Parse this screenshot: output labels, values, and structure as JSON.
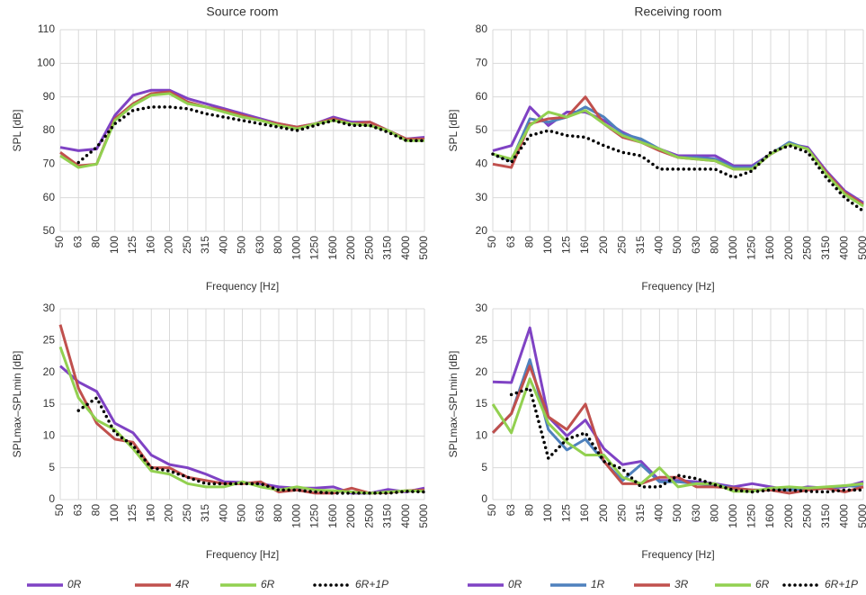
{
  "chart_data": [
    {
      "type": "line",
      "title": "Source room",
      "x_label": "Frequency [Hz]",
      "y_label": "SPL [dB]",
      "categories": [
        "50",
        "63",
        "80",
        "100",
        "125",
        "160",
        "200",
        "250",
        "315",
        "400",
        "500",
        "630",
        "800",
        "1000",
        "1250",
        "1600",
        "2000",
        "2500",
        "3150",
        "4000",
        "5000"
      ],
      "ylim": [
        50,
        110
      ],
      "yticks": [
        50,
        60,
        70,
        80,
        90,
        100,
        110
      ],
      "grid": true,
      "series": [
        {
          "name": "0R",
          "color": "#7f42c4",
          "style": "solid",
          "values": [
            75,
            74,
            74.5,
            84.5,
            90.5,
            92,
            92,
            89.5,
            88,
            86.5,
            85,
            83.5,
            82,
            81,
            82,
            84,
            82.5,
            82.5,
            80,
            77.5,
            78
          ]
        },
        {
          "name": "4R",
          "color": "#c0504d",
          "style": "solid",
          "values": [
            73.5,
            69.5,
            70,
            83.5,
            88,
            91,
            91.5,
            88.5,
            87,
            86,
            84.5,
            83,
            82,
            81,
            82,
            83.5,
            82,
            82.5,
            80,
            77.5,
            77.5
          ]
        },
        {
          "name": "6R",
          "color": "#92d050",
          "style": "solid",
          "values": [
            72.5,
            69,
            70,
            83,
            87.5,
            90.5,
            91,
            88,
            87,
            85.5,
            84,
            83,
            81.5,
            80.5,
            82,
            83,
            82,
            81.5,
            80,
            77,
            77
          ]
        },
        {
          "name": "6R+1P",
          "color": "#000000",
          "style": "dotted",
          "values": [
            null,
            70.5,
            75,
            82,
            86,
            87,
            87,
            86.5,
            85,
            84,
            83,
            82,
            81,
            80,
            81.5,
            83,
            81.5,
            81.5,
            79.5,
            77,
            77
          ]
        }
      ]
    },
    {
      "type": "line",
      "title": "Receiving room",
      "x_label": "Frequency [Hz]",
      "y_label": "SPL [dB]",
      "categories": [
        "50",
        "63",
        "80",
        "100",
        "125",
        "160",
        "200",
        "250",
        "315",
        "400",
        "500",
        "630",
        "800",
        "1000",
        "1250",
        "1600",
        "2000",
        "2500",
        "3150",
        "4000",
        "5000"
      ],
      "ylim": [
        20,
        80
      ],
      "yticks": [
        20,
        30,
        40,
        50,
        60,
        70,
        80
      ],
      "grid": true,
      "series": [
        {
          "name": "0R",
          "color": "#7f42c4",
          "style": "solid",
          "values": [
            44,
            45.5,
            57,
            51.5,
            55.5,
            55.5,
            53,
            49.5,
            47,
            44.5,
            42.5,
            42.5,
            42.5,
            39.5,
            39.5,
            43,
            46,
            45,
            38,
            32,
            28.5
          ]
        },
        {
          "name": "1R",
          "color": "#4f81bd",
          "style": "solid",
          "values": [
            43,
            41,
            53.5,
            52.5,
            54,
            57,
            54,
            49,
            47.5,
            44.5,
            42,
            42,
            41.5,
            39,
            39,
            43,
            46.5,
            44.5,
            37.5,
            31.5,
            28
          ]
        },
        {
          "name": "3R",
          "color": "#c0504d",
          "style": "solid",
          "values": [
            40,
            39,
            52,
            53.5,
            54,
            60,
            52,
            48,
            46.5,
            44,
            42,
            41.5,
            41,
            38.5,
            38.5,
            43,
            46,
            44.5,
            37.5,
            31.5,
            28
          ]
        },
        {
          "name": "6R",
          "color": "#92d050",
          "style": "solid",
          "values": [
            43,
            41.5,
            51.5,
            55.5,
            54,
            56,
            52,
            48.5,
            46.5,
            44.5,
            42,
            41.5,
            41,
            38.5,
            38.5,
            43,
            46,
            44.5,
            37,
            31,
            27.5
          ]
        },
        {
          "name": "6R+1P",
          "color": "#000000",
          "style": "dotted",
          "values": [
            43,
            40.5,
            48.5,
            50,
            48.5,
            48,
            45.5,
            43.5,
            42.5,
            38.5,
            38.5,
            38.5,
            38.5,
            36,
            38,
            43.5,
            45.5,
            43.5,
            36,
            30,
            26
          ]
        }
      ]
    },
    {
      "type": "line",
      "x_label": "Frequency [Hz]",
      "y_label": "SPLmax–SPLmin [dB]",
      "categories": [
        "50",
        "63",
        "80",
        "100",
        "125",
        "160",
        "200",
        "250",
        "315",
        "400",
        "500",
        "630",
        "800",
        "1000",
        "1250",
        "1600",
        "2000",
        "2500",
        "3150",
        "4000",
        "5000"
      ],
      "ylim": [
        0,
        30
      ],
      "yticks": [
        0,
        5,
        10,
        15,
        20,
        25,
        30
      ],
      "grid": true,
      "legend": "bottom",
      "series": [
        {
          "name": "0R",
          "color": "#7f42c4",
          "style": "solid",
          "values": [
            21,
            18.5,
            17,
            12,
            10.5,
            7,
            5.5,
            5,
            4,
            2.8,
            2.7,
            2.5,
            2,
            1.8,
            1.8,
            2,
            1,
            1,
            1.6,
            1.2,
            1.8
          ]
        },
        {
          "name": "4R",
          "color": "#c0504d",
          "style": "solid",
          "values": [
            27.5,
            17.5,
            12,
            9.5,
            9,
            5,
            5,
            3.5,
            3,
            2.5,
            2.5,
            2.8,
            1.2,
            1.5,
            1,
            1,
            1.8,
            1,
            1.1,
            1.4,
            1.5
          ]
        },
        {
          "name": "6R",
          "color": "#92d050",
          "style": "solid",
          "values": [
            24,
            16,
            12.5,
            11,
            8,
            4.5,
            4,
            2.5,
            2,
            2,
            2.8,
            2,
            1.5,
            2,
            1.5,
            1.4,
            1.2,
            1,
            1.2,
            1.4,
            1.3
          ]
        },
        {
          "name": "6R+1P",
          "color": "#000000",
          "style": "dotted",
          "values": [
            null,
            14,
            16,
            10.5,
            8.5,
            5,
            4.5,
            3.5,
            2.5,
            2.5,
            2.5,
            2.5,
            1.5,
            1.5,
            1.2,
            1,
            1,
            1,
            1,
            1.3,
            1.2
          ]
        }
      ]
    },
    {
      "type": "line",
      "x_label": "Frequency [Hz]",
      "y_label": "SPLmax–SPLmin [dB]",
      "categories": [
        "50",
        "63",
        "80",
        "100",
        "125",
        "160",
        "200",
        "250",
        "315",
        "400",
        "500",
        "630",
        "800",
        "1000",
        "1250",
        "1600",
        "2000",
        "2500",
        "3150",
        "4000",
        "5000"
      ],
      "ylim": [
        0,
        30
      ],
      "yticks": [
        0,
        5,
        10,
        15,
        20,
        25,
        30
      ],
      "grid": true,
      "legend": "bottom",
      "series": [
        {
          "name": "0R",
          "color": "#7f42c4",
          "style": "solid",
          "values": [
            18.5,
            18.4,
            27,
            13,
            10,
            12.5,
            8,
            5.5,
            6,
            3,
            3,
            2.8,
            2.5,
            2,
            2.5,
            2,
            1.5,
            2,
            1.8,
            2,
            2.8
          ]
        },
        {
          "name": "1R",
          "color": "#4f81bd",
          "style": "solid",
          "values": [
            10.5,
            13.5,
            22,
            11,
            7.8,
            9.5,
            6,
            3,
            5.5,
            2.8,
            2.8,
            2.5,
            2.3,
            1.8,
            1.5,
            1.5,
            1.5,
            1.8,
            1.8,
            2.2,
            2
          ]
        },
        {
          "name": "3R",
          "color": "#c0504d",
          "style": "solid",
          "values": [
            10.5,
            13.5,
            21,
            13,
            11,
            15,
            6,
            2.5,
            2.5,
            3.5,
            3.5,
            2,
            2,
            1.8,
            1.5,
            1.5,
            1,
            1.5,
            1.8,
            1.2,
            2
          ]
        },
        {
          "name": "6R",
          "color": "#92d050",
          "style": "solid",
          "values": [
            15,
            10.5,
            19,
            12,
            9,
            7,
            7,
            3.5,
            2.5,
            5,
            2,
            2.5,
            2.5,
            1.3,
            1.3,
            1.8,
            2,
            1.8,
            2,
            2.2,
            2.5
          ]
        },
        {
          "name": "6R+1P",
          "color": "#000000",
          "style": "dotted",
          "values": [
            null,
            16.5,
            17.5,
            6.5,
            9.5,
            10.5,
            6,
            4.8,
            2,
            2,
            3.8,
            3.3,
            2.3,
            1.5,
            1.2,
            1.5,
            1.5,
            1.3,
            1.2,
            1.5,
            1.5
          ]
        }
      ]
    }
  ]
}
